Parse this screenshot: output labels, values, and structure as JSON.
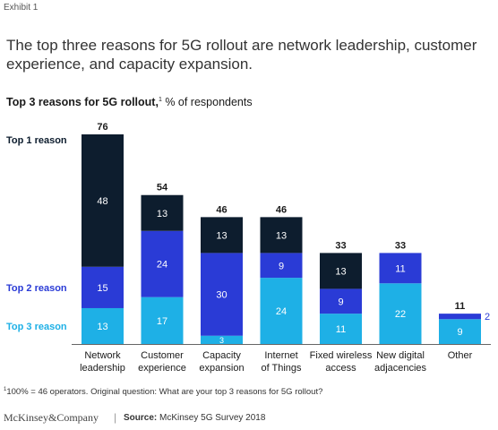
{
  "exhibit_label": "Exhibit 1",
  "headline": "The top three reasons for 5G rollout are network leadership, customer experience, and capacity expansion.",
  "subtitle": {
    "bold": "Top 3 reasons for 5G rollout,",
    "sup": "1",
    "rest": " % of respondents"
  },
  "colors": {
    "top1": "#0d1d2e",
    "top2": "#2a3bd6",
    "top3": "#1eb0e6"
  },
  "chart_data": {
    "type": "bar",
    "stacked": true,
    "categories": [
      [
        "Network",
        "leadership"
      ],
      [
        "Customer",
        "experience"
      ],
      [
        "Capacity",
        "expansion"
      ],
      [
        "Internet",
        "of Things"
      ],
      [
        "Fixed wireless",
        "access"
      ],
      [
        "New digital",
        "adjacencies"
      ],
      [
        "Other"
      ]
    ],
    "series": [
      {
        "name": "Top 3 reason",
        "color": "#1eb0e6",
        "values": [
          13,
          17,
          3,
          24,
          11,
          22,
          9
        ]
      },
      {
        "name": "Top 2 reason",
        "color": "#2a3bd6",
        "values": [
          15,
          24,
          30,
          9,
          9,
          11,
          2
        ]
      },
      {
        "name": "Top 1 reason",
        "color": "#0d1d2e",
        "values": [
          48,
          13,
          13,
          13,
          13,
          null,
          null
        ]
      }
    ],
    "totals": [
      76,
      54,
      46,
      46,
      33,
      33,
      11
    ],
    "ylim": [
      0,
      76
    ]
  },
  "footnote": {
    "sup": "1",
    "text": "100% = 46 operators. Original question: What are your top 3 reasons for 5G rollout?"
  },
  "brand": "McKinsey&Company",
  "separator": "|",
  "source": {
    "bold": "Source:",
    "text": " McKinsey 5G Survey 2018"
  }
}
